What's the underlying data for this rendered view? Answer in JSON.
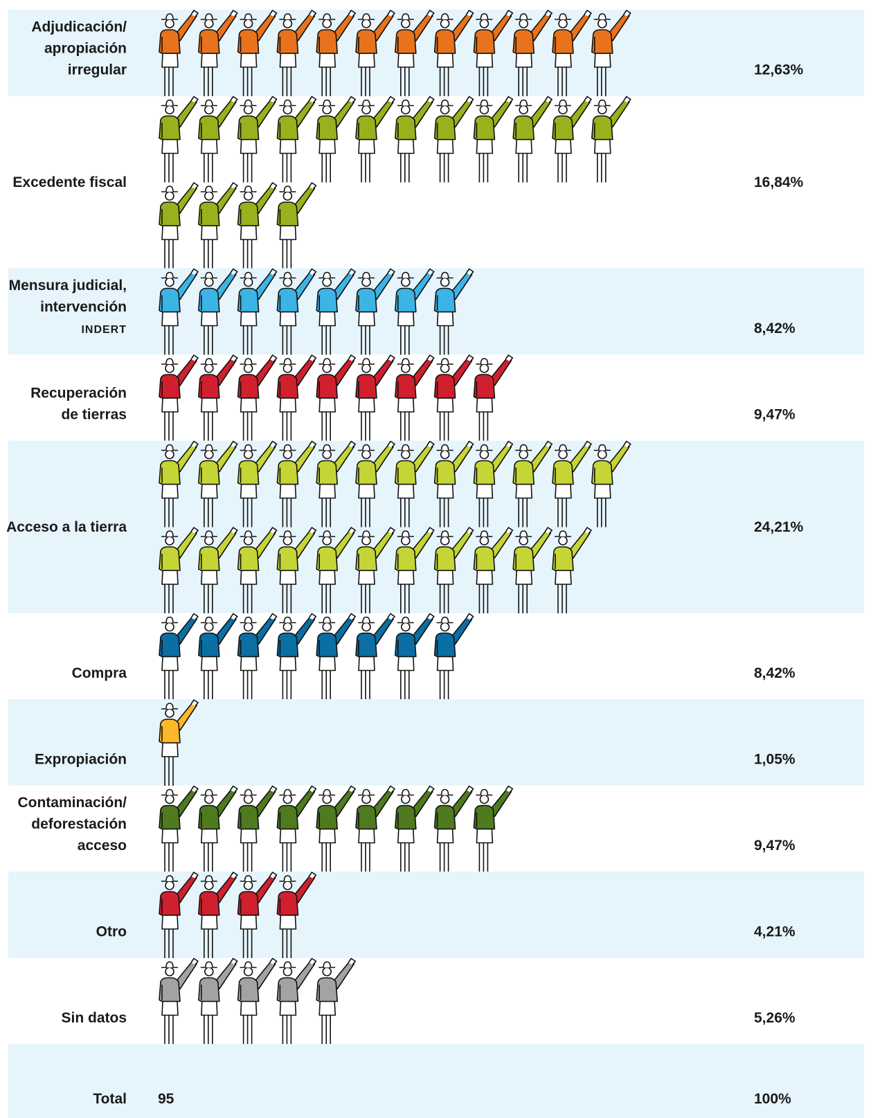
{
  "chart_data": {
    "type": "pictogram",
    "categories": [
      [
        "Adjudicación/",
        "apropiación",
        "irregular"
      ],
      [
        "Excedente fiscal"
      ],
      [
        "Mensura judicial,",
        "intervención",
        "INDERT"
      ],
      [
        "Recuperación",
        "de tierras"
      ],
      [
        "Acceso a la tierra"
      ],
      [
        "Compra"
      ],
      [
        "Expropiación"
      ],
      [
        "Contaminación/",
        "deforestación",
        "acceso"
      ],
      [
        "Otro"
      ],
      [
        "Sin datos"
      ]
    ],
    "counts": [
      12,
      16,
      8,
      9,
      23,
      8,
      1,
      9,
      4,
      5
    ],
    "values": [
      12.63,
      16.84,
      8.42,
      9.47,
      24.21,
      8.42,
      1.05,
      9.47,
      4.21,
      5.26
    ],
    "value_labels": [
      "12,63%",
      "16,84%",
      "8,42%",
      "9,47%",
      "24,21%",
      "8,42%",
      "1,05%",
      "9,47%",
      "4,21%",
      "5,26%"
    ],
    "colors": [
      "#e8731c",
      "#98b21d",
      "#3cb4e5",
      "#d0202e",
      "#c5d535",
      "#0b6fa4",
      "#fbb829",
      "#4f7a1f",
      "#d0202e",
      "#a3a3a3"
    ],
    "icons_per_row": 12,
    "total_label": "Total",
    "total_count": 95,
    "total_percent": "100%"
  }
}
